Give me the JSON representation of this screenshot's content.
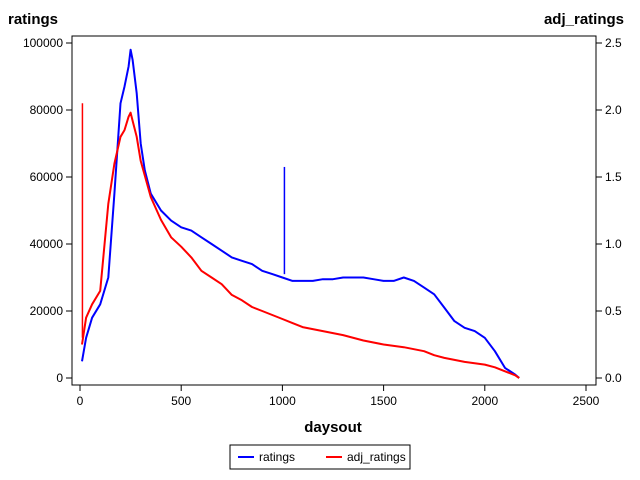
{
  "chart_data": {
    "type": "line",
    "xlabel": "daysout",
    "ylabel": "ratings",
    "y2label": "adj_ratings",
    "xlim": [
      0,
      2500
    ],
    "ylim": [
      0,
      100000
    ],
    "y2lim": [
      0,
      2.5
    ],
    "x_ticks": [
      "0",
      "500",
      "1000",
      "1500",
      "2000",
      "2500"
    ],
    "y_ticks": [
      "0",
      "20000",
      "40000",
      "60000",
      "80000",
      "100000"
    ],
    "y2_ticks": [
      "0.0",
      "0.5",
      "1.0",
      "1.5",
      "2.0",
      "2.5"
    ],
    "grid": false,
    "legend_position": "bottom",
    "series": [
      {
        "name": "ratings",
        "axis": "left",
        "color": "#0000ff",
        "x": [
          10,
          30,
          60,
          100,
          140,
          170,
          200,
          220,
          240,
          250,
          260,
          280,
          300,
          320,
          350,
          400,
          450,
          500,
          550,
          600,
          650,
          700,
          750,
          800,
          850,
          900,
          950,
          1000,
          1050,
          1100,
          1150,
          1200,
          1250,
          1300,
          1350,
          1400,
          1450,
          1500,
          1550,
          1600,
          1650,
          1700,
          1750,
          1800,
          1850,
          1900,
          1950,
          2000,
          2050,
          2100,
          2150,
          2170
        ],
        "values": [
          5000,
          12000,
          18000,
          22000,
          30000,
          55000,
          82000,
          87000,
          93000,
          98000,
          95000,
          85000,
          70000,
          62000,
          55000,
          50000,
          47000,
          45000,
          44000,
          42000,
          40000,
          38000,
          36000,
          35000,
          34000,
          32000,
          31000,
          30000,
          29000,
          29000,
          29000,
          29500,
          29500,
          30000,
          30000,
          30000,
          29500,
          29000,
          29000,
          30000,
          29000,
          27000,
          25000,
          21000,
          17000,
          15000,
          14000,
          12000,
          8000,
          3000,
          1000,
          0
        ]
      },
      {
        "name": "adj_ratings",
        "axis": "right",
        "color": "#ff0000",
        "x": [
          10,
          30,
          60,
          100,
          140,
          170,
          200,
          220,
          240,
          250,
          260,
          280,
          300,
          350,
          400,
          450,
          500,
          550,
          600,
          650,
          700,
          750,
          800,
          850,
          900,
          950,
          1000,
          1050,
          1100,
          1200,
          1300,
          1400,
          1500,
          1600,
          1700,
          1750,
          1800,
          1900,
          2000,
          2050,
          2100,
          2150,
          2170
        ],
        "values": [
          0.25,
          0.45,
          0.55,
          0.65,
          1.3,
          1.6,
          1.8,
          1.85,
          1.95,
          1.98,
          1.92,
          1.8,
          1.62,
          1.35,
          1.18,
          1.05,
          0.98,
          0.9,
          0.8,
          0.75,
          0.7,
          0.62,
          0.58,
          0.53,
          0.5,
          0.47,
          0.44,
          0.41,
          0.38,
          0.35,
          0.32,
          0.28,
          0.25,
          0.23,
          0.2,
          0.17,
          0.15,
          0.12,
          0.1,
          0.08,
          0.05,
          0.02,
          0.0
        ]
      }
    ],
    "spikes": [
      {
        "series": "adj_ratings",
        "x": 12,
        "from": 0.3,
        "to": 2.05
      },
      {
        "series": "ratings",
        "x": 1010,
        "from": 31000,
        "to": 63000
      }
    ]
  }
}
